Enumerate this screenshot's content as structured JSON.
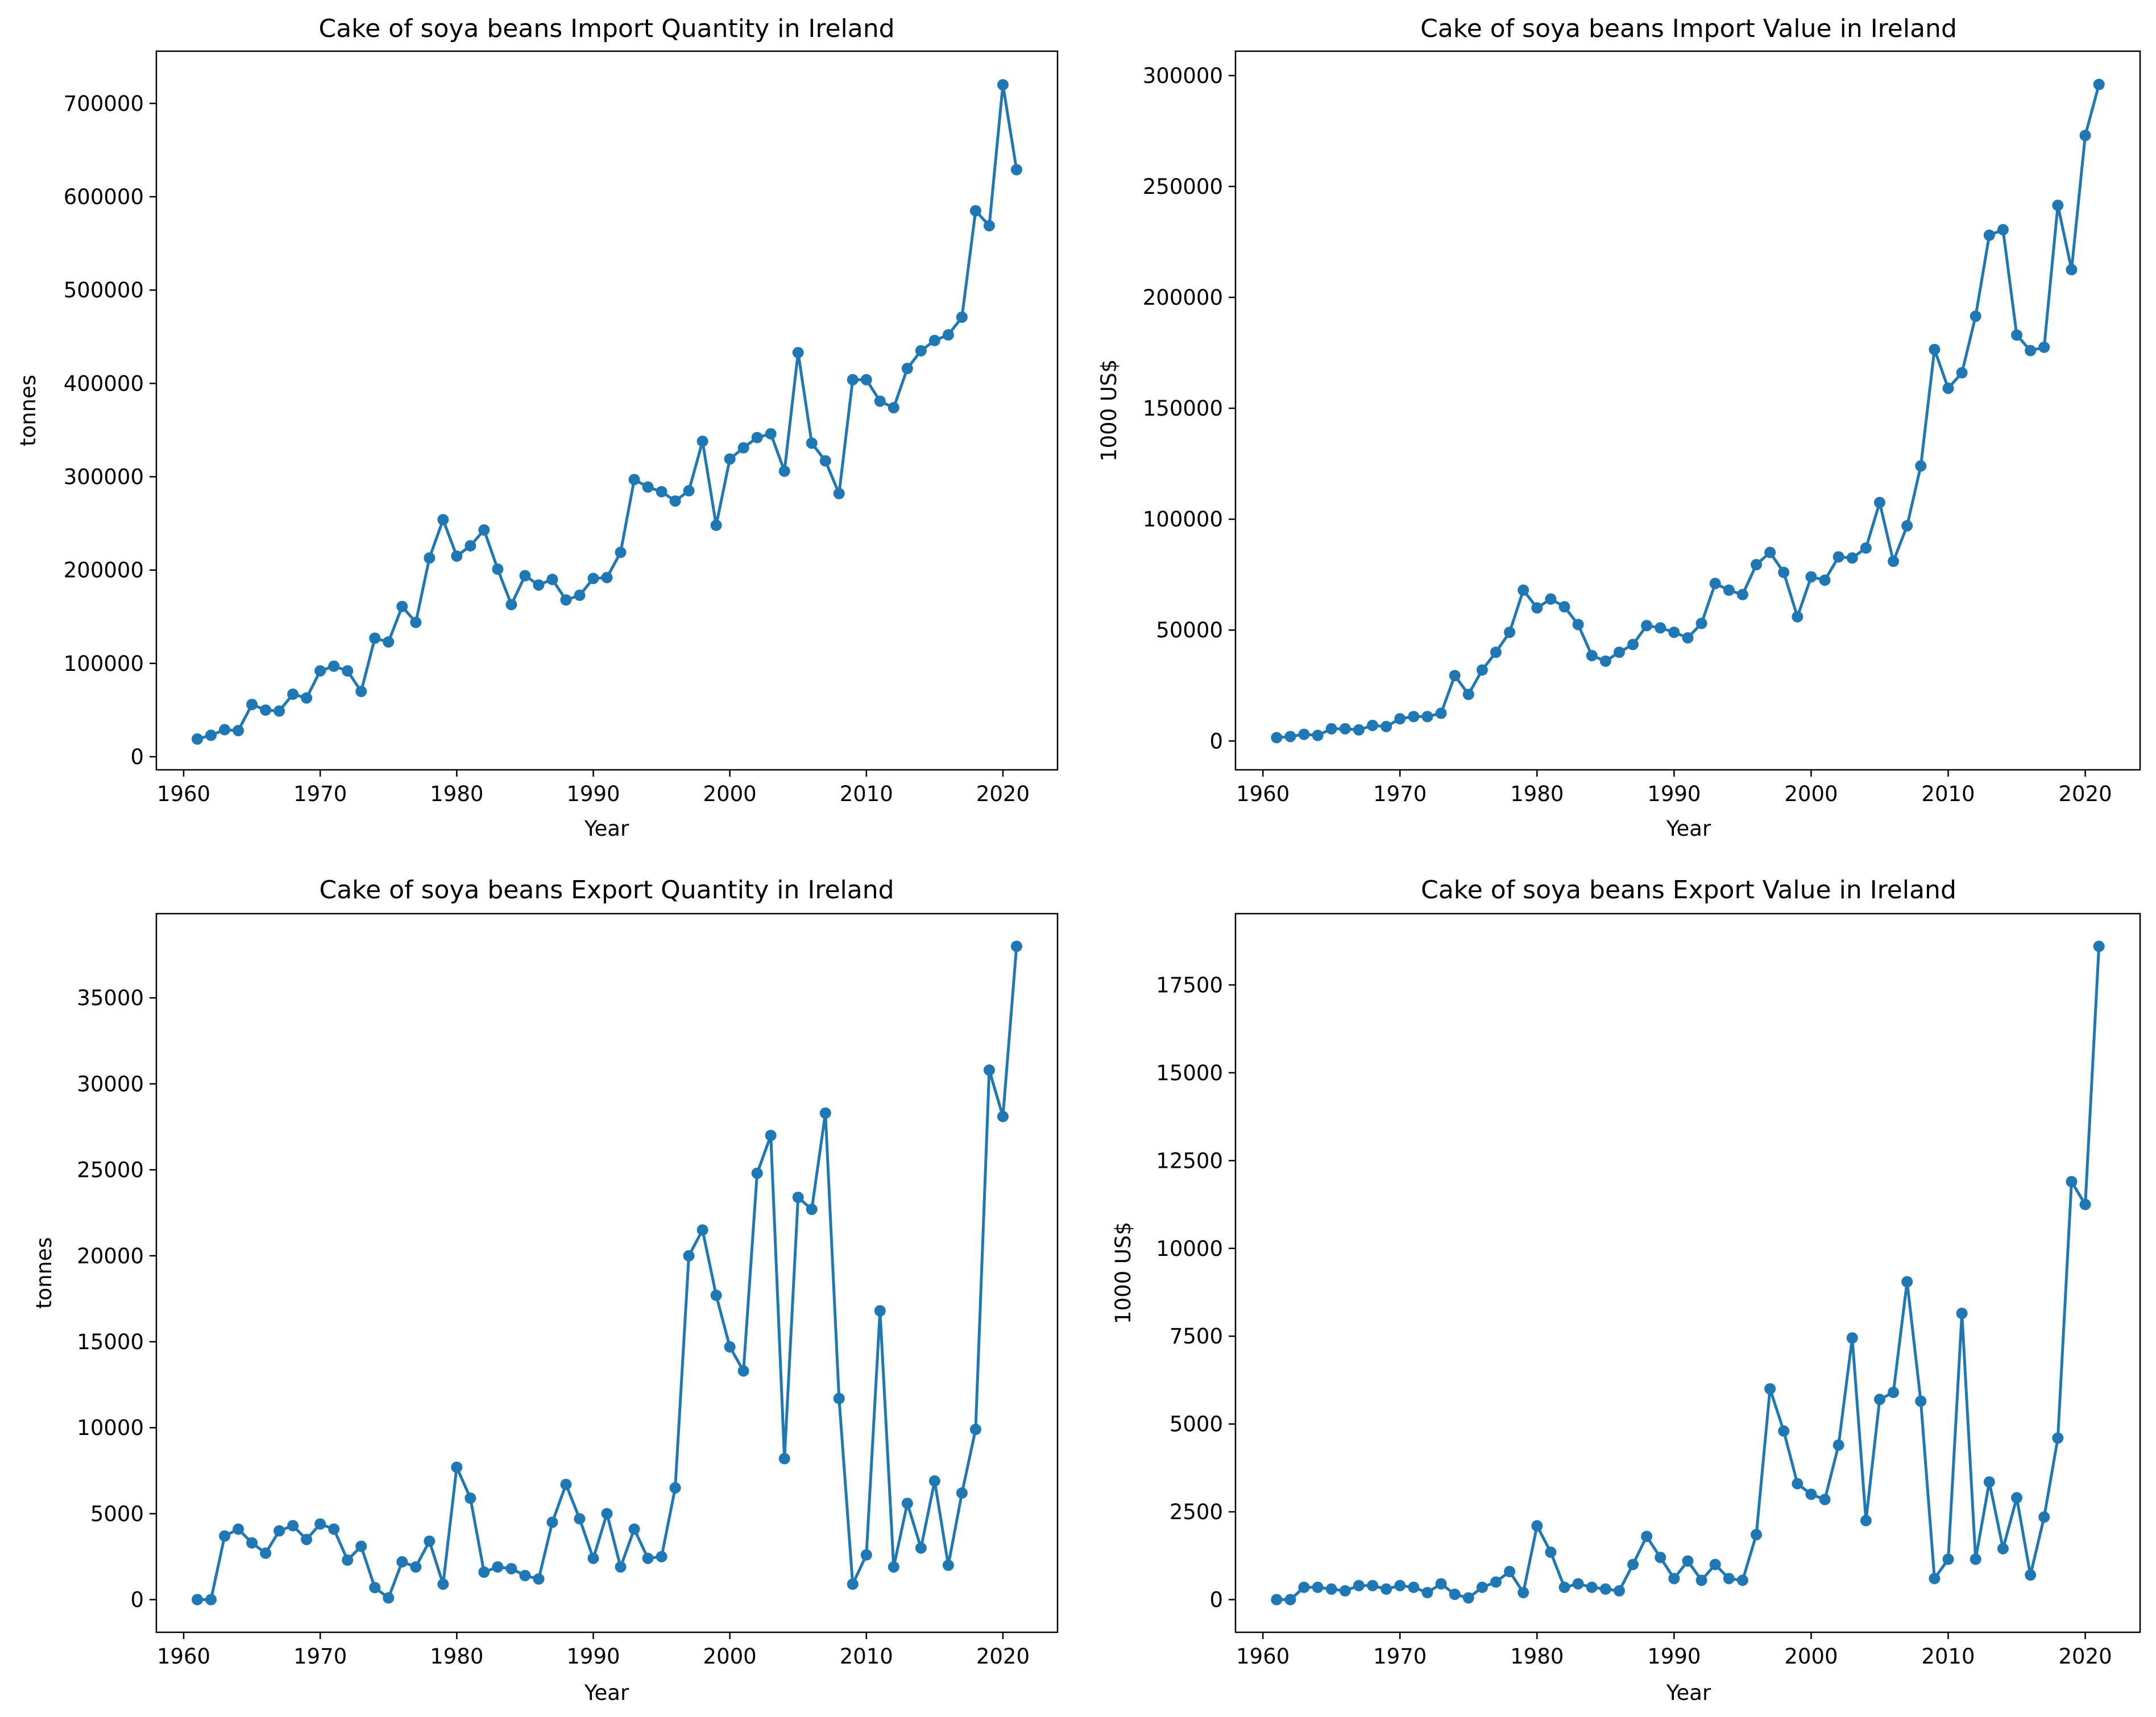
{
  "figure": {
    "background": "#ffffff",
    "line_color": "#1f77b4"
  },
  "chart_data": [
    {
      "type": "line",
      "title": "Cake of  soya beans Import Quantity in Ireland",
      "xlabel": "Year",
      "ylabel": "tonnes",
      "xlim": [
        1958,
        2024
      ],
      "ylim": [
        -14000,
        756000
      ],
      "xticks": [
        1960,
        1970,
        1980,
        1990,
        2000,
        2010,
        2020
      ],
      "yticks": [
        0,
        100000,
        200000,
        300000,
        400000,
        500000,
        600000,
        700000
      ],
      "x": [
        1961,
        1962,
        1963,
        1964,
        1965,
        1966,
        1967,
        1968,
        1969,
        1970,
        1971,
        1972,
        1973,
        1974,
        1975,
        1976,
        1977,
        1978,
        1979,
        1980,
        1981,
        1982,
        1983,
        1984,
        1985,
        1986,
        1987,
        1988,
        1989,
        1990,
        1991,
        1992,
        1993,
        1994,
        1995,
        1996,
        1997,
        1998,
        1999,
        2000,
        2001,
        2002,
        2003,
        2004,
        2005,
        2006,
        2007,
        2008,
        2009,
        2010,
        2011,
        2012,
        2013,
        2014,
        2015,
        2016,
        2017,
        2018,
        2019,
        2020,
        2021
      ],
      "series": [
        {
          "values": [
            19000,
            23000,
            29000,
            28000,
            56000,
            50000,
            49000,
            67000,
            63000,
            92000,
            97000,
            92000,
            70000,
            127000,
            123000,
            161000,
            144000,
            213000,
            254000,
            215000,
            226000,
            243000,
            201000,
            163000,
            194000,
            184000,
            190000,
            168000,
            173000,
            191000,
            192000,
            219000,
            297000,
            289000,
            284000,
            274000,
            285000,
            338000,
            248000,
            319000,
            331000,
            342000,
            346000,
            306000,
            433000,
            336000,
            317000,
            282000,
            404000,
            404000,
            381000,
            374000,
            416000,
            435000,
            446000,
            452000,
            471000,
            585000,
            569000,
            720000,
            629000
          ]
        }
      ],
      "grid": false
    },
    {
      "type": "line",
      "title": "Cake of  soya beans Import Value in Ireland",
      "xlabel": "Year",
      "ylabel": "1000 US$",
      "xlim": [
        1958,
        2024
      ],
      "ylim": [
        -13000,
        311000
      ],
      "xticks": [
        1960,
        1970,
        1980,
        1990,
        2000,
        2010,
        2020
      ],
      "yticks": [
        0,
        50000,
        100000,
        150000,
        200000,
        250000,
        300000
      ],
      "x": [
        1961,
        1962,
        1963,
        1964,
        1965,
        1966,
        1967,
        1968,
        1969,
        1970,
        1971,
        1972,
        1973,
        1974,
        1975,
        1976,
        1977,
        1978,
        1979,
        1980,
        1981,
        1982,
        1983,
        1984,
        1985,
        1986,
        1987,
        1988,
        1989,
        1990,
        1991,
        1992,
        1993,
        1994,
        1995,
        1996,
        1997,
        1998,
        1999,
        2000,
        2001,
        2002,
        2003,
        2004,
        2005,
        2006,
        2007,
        2008,
        2009,
        2010,
        2011,
        2012,
        2013,
        2014,
        2015,
        2016,
        2017,
        2018,
        2019,
        2020,
        2021
      ],
      "series": [
        {
          "values": [
            1500,
            2000,
            3000,
            2500,
            5500,
            5500,
            5000,
            7000,
            6500,
            10000,
            11000,
            11000,
            12500,
            29500,
            21000,
            32000,
            40000,
            49000,
            68000,
            60000,
            64000,
            60500,
            52500,
            38500,
            36000,
            40000,
            43500,
            52000,
            51000,
            49000,
            46500,
            53000,
            71000,
            68000,
            66000,
            79500,
            85000,
            76000,
            56000,
            74000,
            72500,
            83000,
            82500,
            87000,
            107500,
            81000,
            97000,
            124000,
            176500,
            159000,
            166000,
            191500,
            228000,
            230500,
            183000,
            176000,
            177500,
            241500,
            212500,
            273000,
            296000
          ]
        }
      ],
      "grid": false
    },
    {
      "type": "line",
      "title": "Cake of  soya beans Export Quantity in Ireland",
      "xlabel": "Year",
      "ylabel": "tonnes",
      "xlim": [
        1958,
        2024
      ],
      "ylim": [
        -1900,
        39900
      ],
      "xticks": [
        1960,
        1970,
        1980,
        1990,
        2000,
        2010,
        2020
      ],
      "yticks": [
        0,
        5000,
        10000,
        15000,
        20000,
        25000,
        30000,
        35000
      ],
      "x": [
        1961,
        1962,
        1963,
        1964,
        1965,
        1966,
        1967,
        1968,
        1969,
        1970,
        1971,
        1972,
        1973,
        1974,
        1975,
        1976,
        1977,
        1978,
        1979,
        1980,
        1981,
        1982,
        1983,
        1984,
        1985,
        1986,
        1987,
        1988,
        1989,
        1990,
        1991,
        1992,
        1993,
        1994,
        1995,
        1996,
        1997,
        1998,
        1999,
        2000,
        2001,
        2002,
        2003,
        2004,
        2005,
        2006,
        2007,
        2008,
        2009,
        2010,
        2011,
        2012,
        2013,
        2014,
        2015,
        2016,
        2017,
        2018,
        2019,
        2020,
        2021
      ],
      "series": [
        {
          "values": [
            0,
            0,
            3700,
            4100,
            3300,
            2700,
            4000,
            4300,
            3500,
            4400,
            4100,
            2300,
            3100,
            700,
            100,
            2200,
            1900,
            3400,
            900,
            7700,
            5900,
            1600,
            1900,
            1800,
            1400,
            1200,
            4500,
            6700,
            4700,
            2400,
            5000,
            1900,
            4100,
            2400,
            2500,
            6500,
            20000,
            21500,
            17700,
            14700,
            13300,
            24800,
            27000,
            8200,
            23400,
            22700,
            28300,
            11700,
            900,
            2600,
            16800,
            1900,
            5600,
            3000,
            6900,
            2000,
            6200,
            9900,
            30800,
            28100,
            38000
          ]
        }
      ],
      "grid": false
    },
    {
      "type": "line",
      "title": "Cake of  soya beans Export Value in Ireland",
      "xlabel": "Year",
      "ylabel": "1000 US$",
      "xlim": [
        1958,
        2024
      ],
      "ylim": [
        -930,
        19530
      ],
      "xticks": [
        1960,
        1970,
        1980,
        1990,
        2000,
        2010,
        2020
      ],
      "yticks": [
        0,
        2500,
        5000,
        7500,
        10000,
        12500,
        15000,
        17500
      ],
      "x": [
        1961,
        1962,
        1963,
        1964,
        1965,
        1966,
        1967,
        1968,
        1969,
        1970,
        1971,
        1972,
        1973,
        1974,
        1975,
        1976,
        1977,
        1978,
        1979,
        1980,
        1981,
        1982,
        1983,
        1984,
        1985,
        1986,
        1987,
        1988,
        1989,
        1990,
        1991,
        1992,
        1993,
        1994,
        1995,
        1996,
        1997,
        1998,
        1999,
        2000,
        2001,
        2002,
        2003,
        2004,
        2005,
        2006,
        2007,
        2008,
        2009,
        2010,
        2011,
        2012,
        2013,
        2014,
        2015,
        2016,
        2017,
        2018,
        2019,
        2020,
        2021
      ],
      "series": [
        {
          "values": [
            0,
            0,
            350,
            350,
            300,
            250,
            400,
            400,
            300,
            400,
            350,
            200,
            450,
            150,
            50,
            350,
            500,
            800,
            200,
            2100,
            1350,
            350,
            450,
            350,
            300,
            250,
            1000,
            1800,
            1200,
            600,
            1100,
            550,
            1000,
            600,
            550,
            1850,
            6000,
            4800,
            3300,
            3000,
            2850,
            4400,
            7450,
            2250,
            5700,
            5900,
            9050,
            5650,
            600,
            1150,
            8150,
            1150,
            3350,
            1450,
            2900,
            700,
            2350,
            4600,
            11900,
            11250,
            18600
          ]
        }
      ],
      "grid": false
    }
  ]
}
